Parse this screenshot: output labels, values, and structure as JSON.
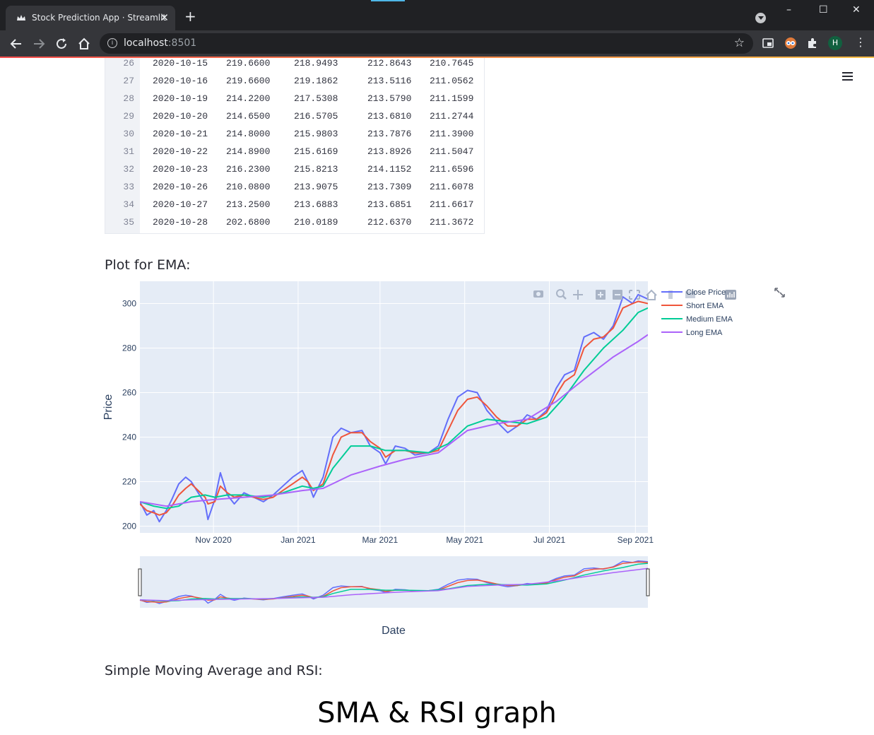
{
  "browser": {
    "tab_title": "Stock Prediction App · Streamlit",
    "url_host": "localhost",
    "url_port": ":8501",
    "profile_initial": "H",
    "window_controls": {
      "minimize": "–",
      "maximize": "☐",
      "close": "✕"
    }
  },
  "table": {
    "rows": [
      {
        "index": "26",
        "date": "2020-10-15",
        "close": "219.6600",
        "short": "218.9493",
        "medium": "212.8643",
        "long": "210.7645"
      },
      {
        "index": "27",
        "date": "2020-10-16",
        "close": "219.6600",
        "short": "219.1862",
        "medium": "213.5116",
        "long": "211.0562"
      },
      {
        "index": "28",
        "date": "2020-10-19",
        "close": "214.2200",
        "short": "217.5308",
        "medium": "213.5790",
        "long": "211.1599"
      },
      {
        "index": "29",
        "date": "2020-10-20",
        "close": "214.6500",
        "short": "216.5705",
        "medium": "213.6810",
        "long": "211.2744"
      },
      {
        "index": "30",
        "date": "2020-10-21",
        "close": "214.8000",
        "short": "215.9803",
        "medium": "213.7876",
        "long": "211.3900"
      },
      {
        "index": "31",
        "date": "2020-10-22",
        "close": "214.8900",
        "short": "215.6169",
        "medium": "213.8926",
        "long": "211.5047"
      },
      {
        "index": "32",
        "date": "2020-10-23",
        "close": "216.2300",
        "short": "215.8213",
        "medium": "214.1152",
        "long": "211.6596"
      },
      {
        "index": "33",
        "date": "2020-10-26",
        "close": "210.0800",
        "short": "213.9075",
        "medium": "213.7309",
        "long": "211.6078"
      },
      {
        "index": "34",
        "date": "2020-10-27",
        "close": "213.2500",
        "short": "213.6883",
        "medium": "213.6851",
        "long": "211.6617"
      },
      {
        "index": "35",
        "date": "2020-10-28",
        "close": "202.6800",
        "short": "210.0189",
        "medium": "212.6370",
        "long": "211.3672"
      }
    ]
  },
  "sections": {
    "ema_heading": "Plot for EMA:",
    "sma_heading": "Simple Moving Average and RSI:",
    "sma_graph_title": "SMA & RSI graph"
  },
  "chart_data": {
    "type": "line",
    "xlabel": "Date",
    "ylabel": "Price",
    "ylim": [
      197,
      310
    ],
    "y_ticks": [
      200,
      220,
      240,
      260,
      280,
      300
    ],
    "x_ticks": [
      {
        "label": "Nov 2020",
        "date": "2020-11-01"
      },
      {
        "label": "Jan 2021",
        "date": "2021-01-01"
      },
      {
        "label": "Mar 2021",
        "date": "2021-03-01"
      },
      {
        "label": "May 2021",
        "date": "2021-05-01"
      },
      {
        "label": "Jul 2021",
        "date": "2021-07-01"
      },
      {
        "label": "Sep 2021",
        "date": "2021-09-01"
      }
    ],
    "xlim": [
      "2020-09-09",
      "2021-09-10"
    ],
    "grid": true,
    "legend_position": "right",
    "range_slider": true,
    "series": [
      {
        "name": "Close Price",
        "color": "#636efa",
        "x": [
          "2020-09-09",
          "2020-09-14",
          "2020-09-19",
          "2020-09-23",
          "2020-09-28",
          "2020-10-02",
          "2020-10-07",
          "2020-10-12",
          "2020-10-16",
          "2020-10-21",
          "2020-10-26",
          "2020-10-28",
          "2020-11-02",
          "2020-11-06",
          "2020-11-11",
          "2020-11-16",
          "2020-11-23",
          "2020-11-30",
          "2020-12-07",
          "2020-12-14",
          "2020-12-21",
          "2020-12-28",
          "2021-01-04",
          "2021-01-08",
          "2021-01-12",
          "2021-01-19",
          "2021-01-26",
          "2021-02-01",
          "2021-02-08",
          "2021-02-16",
          "2021-02-22",
          "2021-03-01",
          "2021-03-05",
          "2021-03-12",
          "2021-03-19",
          "2021-03-26",
          "2021-04-05",
          "2021-04-12",
          "2021-04-19",
          "2021-04-26",
          "2021-05-03",
          "2021-05-10",
          "2021-05-17",
          "2021-05-24",
          "2021-06-01",
          "2021-06-08",
          "2021-06-15",
          "2021-06-22",
          "2021-06-29",
          "2021-07-06",
          "2021-07-12",
          "2021-07-19",
          "2021-07-26",
          "2021-08-02",
          "2021-08-09",
          "2021-08-16",
          "2021-08-23",
          "2021-08-30",
          "2021-09-03",
          "2021-09-10"
        ],
        "y": [
          211,
          205,
          207,
          202,
          207,
          212,
          219,
          222,
          220,
          215,
          210,
          203,
          212,
          224,
          214,
          210,
          215,
          213,
          211,
          214,
          218,
          222,
          225,
          220,
          213,
          222,
          240,
          244,
          242,
          243,
          236,
          233,
          228,
          236,
          235,
          232,
          233,
          236,
          248,
          258,
          261,
          260,
          252,
          247,
          242,
          245,
          250,
          248,
          252,
          262,
          268,
          270,
          285,
          287,
          284,
          290,
          303,
          300,
          304,
          302
        ]
      },
      {
        "name": "Short EMA",
        "color": "#ef553b",
        "x": [
          "2020-09-09",
          "2020-09-14",
          "2020-09-19",
          "2020-09-23",
          "2020-09-28",
          "2020-10-02",
          "2020-10-07",
          "2020-10-12",
          "2020-10-16",
          "2020-10-21",
          "2020-10-26",
          "2020-10-28",
          "2020-11-02",
          "2020-11-06",
          "2020-11-11",
          "2020-11-16",
          "2020-11-23",
          "2020-11-30",
          "2020-12-07",
          "2020-12-14",
          "2020-12-21",
          "2020-12-28",
          "2021-01-04",
          "2021-01-08",
          "2021-01-12",
          "2021-01-19",
          "2021-01-26",
          "2021-02-01",
          "2021-02-08",
          "2021-02-16",
          "2021-02-22",
          "2021-03-01",
          "2021-03-05",
          "2021-03-12",
          "2021-03-19",
          "2021-03-26",
          "2021-04-05",
          "2021-04-12",
          "2021-04-19",
          "2021-04-26",
          "2021-05-03",
          "2021-05-10",
          "2021-05-17",
          "2021-05-24",
          "2021-06-01",
          "2021-06-08",
          "2021-06-15",
          "2021-06-22",
          "2021-06-29",
          "2021-07-06",
          "2021-07-12",
          "2021-07-19",
          "2021-07-26",
          "2021-08-02",
          "2021-08-09",
          "2021-08-16",
          "2021-08-23",
          "2021-08-30",
          "2021-09-03",
          "2021-09-10"
        ],
        "y": [
          210,
          207,
          206,
          205,
          206,
          209,
          214,
          217,
          219,
          216,
          213,
          210,
          211,
          218,
          215,
          213,
          214,
          213,
          212,
          213,
          216,
          219,
          222,
          220,
          216,
          219,
          232,
          240,
          242,
          242,
          238,
          235,
          231,
          234,
          234,
          233,
          233,
          234,
          243,
          252,
          257,
          258,
          254,
          249,
          245,
          245,
          248,
          248,
          251,
          259,
          265,
          268,
          280,
          284,
          285,
          289,
          298,
          300,
          301,
          300
        ]
      },
      {
        "name": "Medium EMA",
        "color": "#00cc96",
        "x": [
          "2020-09-09",
          "2020-09-19",
          "2020-09-28",
          "2020-10-07",
          "2020-10-16",
          "2020-10-26",
          "2020-11-02",
          "2020-11-11",
          "2020-11-23",
          "2020-12-07",
          "2020-12-21",
          "2021-01-04",
          "2021-01-12",
          "2021-01-19",
          "2021-01-26",
          "2021-02-08",
          "2021-02-22",
          "2021-03-05",
          "2021-03-19",
          "2021-04-05",
          "2021-04-19",
          "2021-05-03",
          "2021-05-17",
          "2021-06-01",
          "2021-06-15",
          "2021-06-29",
          "2021-07-12",
          "2021-07-26",
          "2021-08-09",
          "2021-08-23",
          "2021-09-03",
          "2021-09-10"
        ],
        "y": [
          211,
          209,
          208,
          209,
          213,
          214,
          213,
          214,
          214,
          213,
          215,
          218,
          217,
          218,
          226,
          236,
          236,
          234,
          234,
          233,
          237,
          245,
          248,
          247,
          246,
          249,
          258,
          270,
          280,
          288,
          296,
          298
        ]
      },
      {
        "name": "Long EMA",
        "color": "#ab63fa",
        "x": [
          "2020-09-09",
          "2020-09-28",
          "2020-10-16",
          "2020-11-02",
          "2020-11-23",
          "2020-12-14",
          "2021-01-04",
          "2021-01-19",
          "2021-02-08",
          "2021-03-01",
          "2021-03-19",
          "2021-04-12",
          "2021-05-03",
          "2021-05-24",
          "2021-06-15",
          "2021-07-06",
          "2021-07-26",
          "2021-08-16",
          "2021-09-03",
          "2021-09-10"
        ],
        "y": [
          211,
          209,
          211,
          212,
          213,
          214,
          216,
          217,
          223,
          227,
          230,
          233,
          243,
          246,
          248,
          256,
          266,
          276,
          283,
          286
        ]
      }
    ]
  }
}
